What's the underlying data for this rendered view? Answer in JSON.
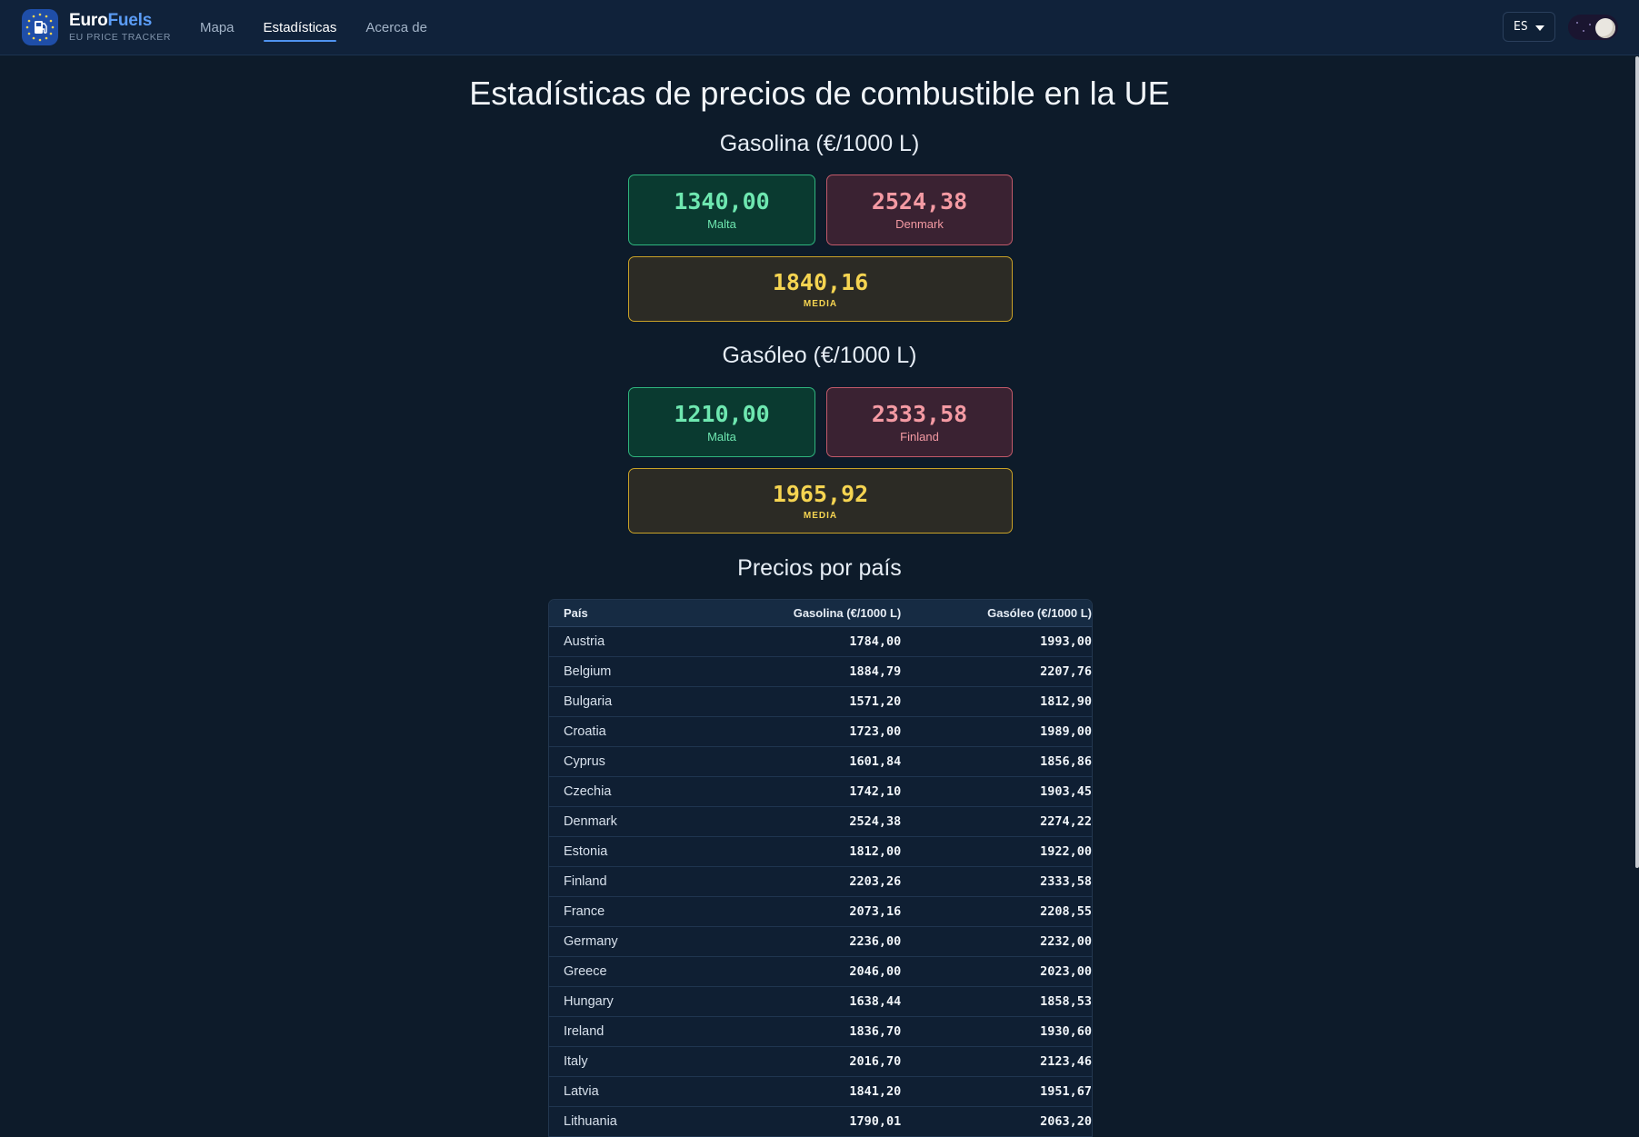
{
  "header": {
    "brand_part1": "Euro",
    "brand_part2": "Fuels",
    "brand_sub": "EU PRICE TRACKER",
    "nav": [
      {
        "label": "Mapa",
        "active": false
      },
      {
        "label": "Estadísticas",
        "active": true
      },
      {
        "label": "Acerca de",
        "active": false
      }
    ],
    "language": "ES",
    "logo_icon": "fuel-pump-icon",
    "theme_icon": "moon-icon"
  },
  "main": {
    "title": "Estadísticas de precios de combustible en la UE",
    "petrol": {
      "title": "Gasolina (€/1000 L)",
      "min": {
        "value": "1340,00",
        "country": "Malta"
      },
      "max": {
        "value": "2524,38",
        "country": "Denmark"
      },
      "avg": {
        "value": "1840,16",
        "label": "MEDIA"
      }
    },
    "diesel": {
      "title": "Gasóleo (€/1000 L)",
      "min": {
        "value": "1210,00",
        "country": "Malta"
      },
      "max": {
        "value": "2333,58",
        "country": "Finland"
      },
      "avg": {
        "value": "1965,92",
        "label": "MEDIA"
      }
    },
    "table": {
      "title": "Precios por país",
      "headers": {
        "country": "País",
        "petrol": "Gasolina (€/1000 L)",
        "diesel": "Gasóleo (€/1000 L)"
      },
      "rows": [
        {
          "country": "Austria",
          "petrol": "1784,00",
          "diesel": "1993,00"
        },
        {
          "country": "Belgium",
          "petrol": "1884,79",
          "diesel": "2207,76"
        },
        {
          "country": "Bulgaria",
          "petrol": "1571,20",
          "diesel": "1812,90"
        },
        {
          "country": "Croatia",
          "petrol": "1723,00",
          "diesel": "1989,00"
        },
        {
          "country": "Cyprus",
          "petrol": "1601,84",
          "diesel": "1856,86"
        },
        {
          "country": "Czechia",
          "petrol": "1742,10",
          "diesel": "1903,45"
        },
        {
          "country": "Denmark",
          "petrol": "2524,38",
          "diesel": "2274,22"
        },
        {
          "country": "Estonia",
          "petrol": "1812,00",
          "diesel": "1922,00"
        },
        {
          "country": "Finland",
          "petrol": "2203,26",
          "diesel": "2333,58"
        },
        {
          "country": "France",
          "petrol": "2073,16",
          "diesel": "2208,55"
        },
        {
          "country": "Germany",
          "petrol": "2236,00",
          "diesel": "2232,00"
        },
        {
          "country": "Greece",
          "petrol": "2046,00",
          "diesel": "2023,00"
        },
        {
          "country": "Hungary",
          "petrol": "1638,44",
          "diesel": "1858,53"
        },
        {
          "country": "Ireland",
          "petrol": "1836,70",
          "diesel": "1930,60"
        },
        {
          "country": "Italy",
          "petrol": "2016,70",
          "diesel": "2123,46"
        },
        {
          "country": "Latvia",
          "petrol": "1841,20",
          "diesel": "1951,67"
        },
        {
          "country": "Lithuania",
          "petrol": "1790,01",
          "diesel": "2063,20"
        }
      ]
    }
  },
  "colors": {
    "background": "#0d1b2a",
    "accent": "#4f93f0",
    "min_green": "#6ee7b0",
    "max_red": "#f49aa3",
    "avg_yellow": "#f5d451"
  }
}
